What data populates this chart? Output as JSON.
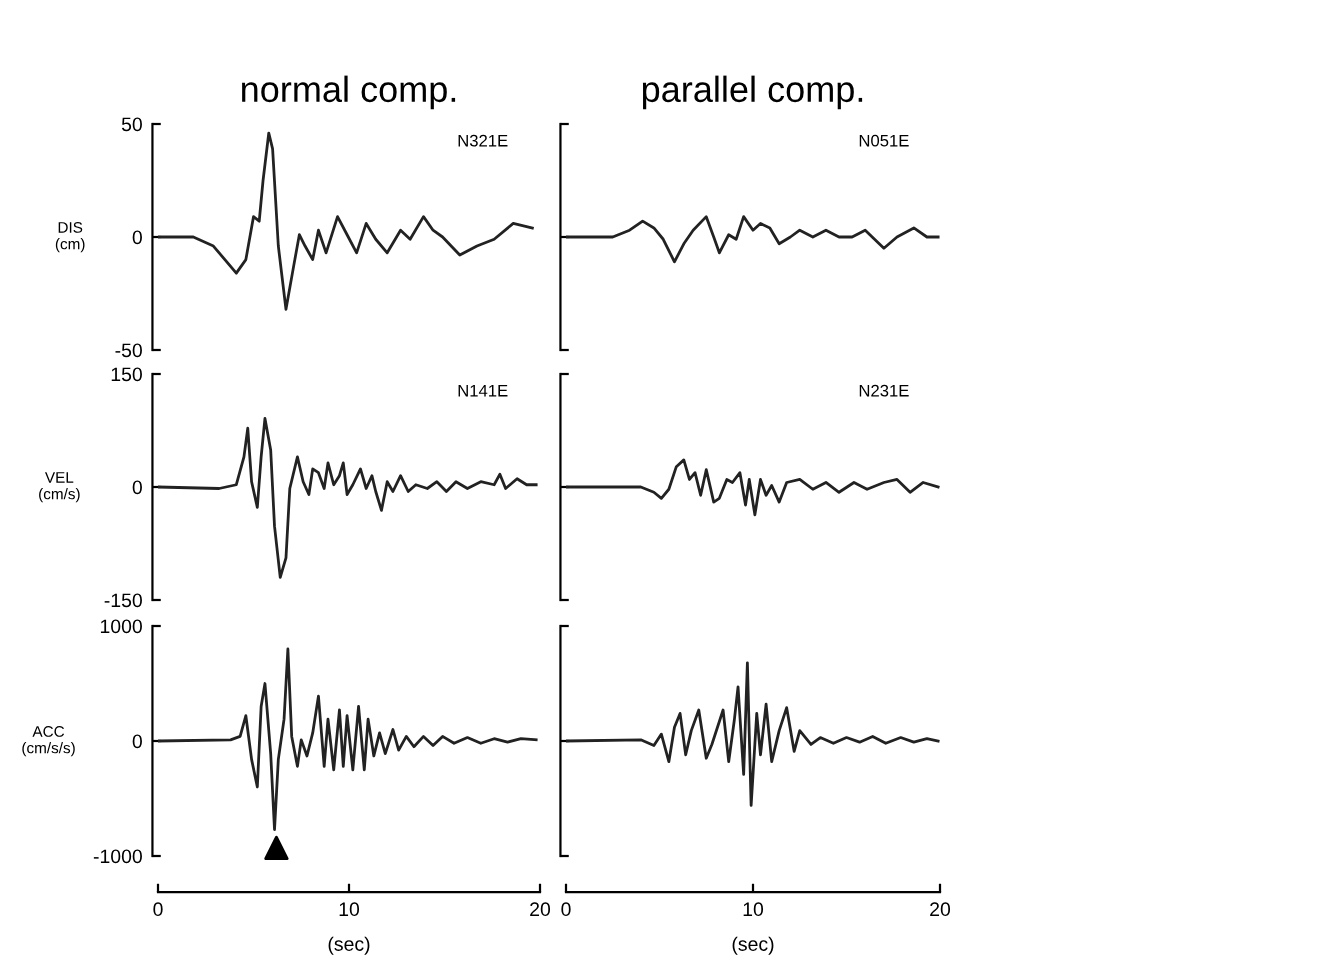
{
  "chart_data": [
    {
      "type": "line",
      "title": "normal comp.",
      "ylabel": "DIS\n(cm)",
      "annotations": [
        "N321E"
      ],
      "color": "#222222",
      "xlim": [
        0,
        20
      ],
      "xticks": [
        0,
        10,
        20
      ],
      "ylim": [
        -50,
        50
      ],
      "yticks": [
        -50,
        0,
        50
      ],
      "tick_labels": "y",
      "x": [
        0,
        1.85,
        2.9,
        4.1,
        4.6,
        5.0,
        5.3,
        5.5,
        5.8,
        6.0,
        6.3,
        6.7,
        7.1,
        7.4,
        7.7,
        8.1,
        8.4,
        8.8,
        9.4,
        9.9,
        10.4,
        10.9,
        11.4,
        12.0,
        12.7,
        13.2,
        13.9,
        14.4,
        14.9,
        15.8,
        16.7,
        17.6,
        18.6,
        19.6
      ],
      "values": [
        0,
        0,
        -4,
        -16,
        -10,
        9,
        7,
        25,
        46,
        39,
        -4,
        -32,
        -13,
        1,
        -4,
        -10,
        3,
        -7,
        9,
        1,
        -7,
        6,
        -1,
        -7,
        3,
        -1,
        9,
        3,
        0,
        -8,
        -4,
        -1,
        6,
        4
      ]
    },
    {
      "type": "line",
      "title": "parallel comp.",
      "annotations": [
        "N051E"
      ],
      "color": "#222222",
      "xlim": [
        0,
        20
      ],
      "xticks": [
        0,
        10,
        20
      ],
      "ylim": [
        -50,
        50
      ],
      "yticks": [
        -50,
        0,
        50
      ],
      "tick_labels": false,
      "x": [
        0,
        2.5,
        3.4,
        4.1,
        4.7,
        5.2,
        5.8,
        6.3,
        6.8,
        7.5,
        7.9,
        8.2,
        8.7,
        9.1,
        9.5,
        10.0,
        10.4,
        10.9,
        11.4,
        12.0,
        12.5,
        13.2,
        13.9,
        14.6,
        15.3,
        16.0,
        17.0,
        17.7,
        18.6,
        19.3,
        19.9
      ],
      "values": [
        0,
        0,
        3,
        7,
        4,
        -1,
        -11,
        -3,
        3,
        9,
        0,
        -7,
        1,
        -1,
        9,
        3,
        6,
        4,
        -3,
        0,
        3,
        0,
        3,
        0,
        0,
        3,
        -5,
        0,
        4,
        0,
        0
      ]
    },
    {
      "type": "line",
      "ylabel": "VEL\n(cm/s)",
      "annotations": [
        "N141E"
      ],
      "color": "#222222",
      "xlim": [
        0,
        20
      ],
      "xticks": [
        0,
        10,
        20
      ],
      "ylim": [
        -150,
        150
      ],
      "yticks": [
        -150,
        0,
        150
      ],
      "tick_labels": "y",
      "x": [
        0,
        3.2,
        4.1,
        4.5,
        4.7,
        4.9,
        5.2,
        5.4,
        5.6,
        5.9,
        6.1,
        6.4,
        6.7,
        6.9,
        7.3,
        7.6,
        7.9,
        8.1,
        8.4,
        8.7,
        8.9,
        9.2,
        9.5,
        9.7,
        9.9,
        10.2,
        10.6,
        10.9,
        11.2,
        11.4,
        11.7,
        12.0,
        12.3,
        12.7,
        13.1,
        13.5,
        14.1,
        14.6,
        15.1,
        15.6,
        16.2,
        16.9,
        17.6,
        17.9,
        18.2,
        18.8,
        19.3,
        19.8
      ],
      "values": [
        0,
        -2,
        3,
        40,
        78,
        7,
        -27,
        40,
        91,
        49,
        -52,
        -120,
        -94,
        -2,
        40,
        7,
        -10,
        24,
        19,
        -2,
        32,
        3,
        15,
        32,
        -10,
        3,
        24,
        -2,
        15,
        -6,
        -31,
        7,
        -6,
        15,
        -6,
        3,
        -2,
        7,
        -6,
        7,
        -2,
        7,
        3,
        17,
        -2,
        11,
        3,
        3
      ]
    },
    {
      "type": "line",
      "annotations": [
        "N231E"
      ],
      "color": "#222222",
      "xlim": [
        0,
        20
      ],
      "xticks": [
        0,
        10,
        20
      ],
      "ylim": [
        -150,
        150
      ],
      "yticks": [
        -150,
        0,
        150
      ],
      "tick_labels": false,
      "x": [
        0,
        4.0,
        4.7,
        5.1,
        5.5,
        5.9,
        6.3,
        6.6,
        6.9,
        7.2,
        7.5,
        7.9,
        8.2,
        8.6,
        8.9,
        9.3,
        9.6,
        9.8,
        10.1,
        10.4,
        10.7,
        11.0,
        11.4,
        11.8,
        12.5,
        13.2,
        13.9,
        14.6,
        15.4,
        16.1,
        17.0,
        17.7,
        18.4,
        19.1,
        19.9
      ],
      "values": [
        0,
        0,
        -7,
        -15,
        -3,
        27,
        36,
        10,
        19,
        -11,
        23,
        -20,
        -15,
        10,
        6,
        19,
        -24,
        10,
        -37,
        10,
        -11,
        2,
        -20,
        6,
        10,
        -3,
        6,
        -7,
        6,
        -3,
        6,
        10,
        -7,
        6,
        0
      ]
    },
    {
      "type": "line",
      "ylabel": "ACC\n(cm/s/s)",
      "xlabel": "(sec)",
      "color": "#222222",
      "xlim": [
        0,
        20
      ],
      "xticks": [
        0,
        10,
        20
      ],
      "ylim": [
        -1000,
        1000
      ],
      "yticks": [
        -1000,
        0,
        1000
      ],
      "x": [
        0,
        3.8,
        4.3,
        4.6,
        4.9,
        5.2,
        5.4,
        5.6,
        5.9,
        6.1,
        6.3,
        6.6,
        6.8,
        7.0,
        7.3,
        7.5,
        7.8,
        8.1,
        8.4,
        8.7,
        8.9,
        9.2,
        9.5,
        9.7,
        9.9,
        10.2,
        10.5,
        10.8,
        11.0,
        11.3,
        11.6,
        11.9,
        12.3,
        12.6,
        13.0,
        13.4,
        13.9,
        14.4,
        14.9,
        15.5,
        16.2,
        16.9,
        17.6,
        18.3,
        19.0,
        19.8
      ],
      "values": [
        0,
        10,
        40,
        220,
        -160,
        -400,
        300,
        500,
        -110,
        -770,
        -160,
        190,
        800,
        40,
        -220,
        10,
        -130,
        70,
        390,
        -220,
        190,
        -250,
        270,
        -220,
        220,
        -250,
        300,
        -250,
        190,
        -130,
        70,
        -110,
        100,
        -80,
        40,
        -50,
        40,
        -40,
        40,
        -20,
        30,
        -20,
        20,
        -10,
        20,
        10
      ]
    },
    {
      "type": "line",
      "xlabel": "(sec)",
      "color": "#222222",
      "xlim": [
        0,
        20
      ],
      "xticks": [
        0,
        10,
        20
      ],
      "ylim": [
        -1000,
        1000
      ],
      "yticks": [
        -1000,
        0,
        1000
      ],
      "tick_labels": "x",
      "x": [
        0,
        4.0,
        4.7,
        5.1,
        5.5,
        5.8,
        6.1,
        6.4,
        6.7,
        7.1,
        7.5,
        7.8,
        8.1,
        8.4,
        8.7,
        9.0,
        9.2,
        9.5,
        9.7,
        9.9,
        10.2,
        10.4,
        10.7,
        11.0,
        11.4,
        11.8,
        12.2,
        12.5,
        13.1,
        13.6,
        14.3,
        15.0,
        15.7,
        16.4,
        17.1,
        17.9,
        18.6,
        19.3,
        19.9
      ],
      "values": [
        0,
        10,
        -40,
        60,
        -180,
        120,
        240,
        -120,
        90,
        270,
        -150,
        -30,
        120,
        270,
        -180,
        180,
        470,
        -290,
        680,
        -560,
        240,
        -120,
        320,
        -180,
        90,
        290,
        -90,
        90,
        -30,
        30,
        -20,
        30,
        -10,
        40,
        -20,
        30,
        -10,
        20,
        0
      ]
    }
  ]
}
